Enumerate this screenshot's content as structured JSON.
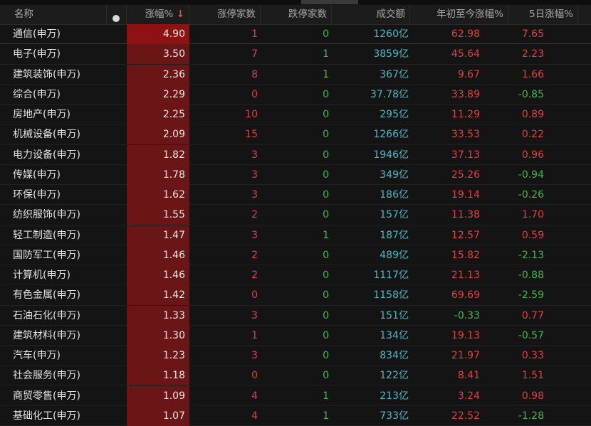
{
  "colors": {
    "up": "#e2403c",
    "down": "#3fb84a",
    "amount": "#4ab9c4",
    "highlight_column": "#6b1616"
  },
  "header": {
    "name": "名称",
    "dot_icon": "status-dot",
    "change": "涨幅%",
    "sort_icon": "arrow-down",
    "limit_up": "涨停家数",
    "limit_down": "跌停家数",
    "amount": "成交额",
    "ytd": "年初至今涨幅%",
    "d5": "5日涨幅%"
  },
  "rows": [
    {
      "name": "通信(申万)",
      "chg": "4.90",
      "up": "1",
      "dn": "0",
      "amt": "1260亿",
      "ytd": "62.98",
      "d5": "7.65"
    },
    {
      "name": "电子(申万)",
      "chg": "3.50",
      "up": "7",
      "dn": "1",
      "amt": "3859亿",
      "ytd": "45.64",
      "d5": "2.23"
    },
    {
      "name": "建筑装饰(申万)",
      "chg": "2.36",
      "up": "8",
      "dn": "1",
      "amt": "367亿",
      "ytd": "9.67",
      "d5": "1.66"
    },
    {
      "name": "综合(申万)",
      "chg": "2.29",
      "up": "0",
      "dn": "0",
      "amt": "37.78亿",
      "ytd": "33.89",
      "d5": "-0.85"
    },
    {
      "name": "房地产(申万)",
      "chg": "2.25",
      "up": "10",
      "dn": "0",
      "amt": "295亿",
      "ytd": "11.29",
      "d5": "0.89"
    },
    {
      "name": "机械设备(申万)",
      "chg": "2.09",
      "up": "15",
      "dn": "0",
      "amt": "1266亿",
      "ytd": "33.53",
      "d5": "0.22"
    },
    {
      "name": "电力设备(申万)",
      "chg": "1.82",
      "up": "3",
      "dn": "0",
      "amt": "1946亿",
      "ytd": "37.13",
      "d5": "0.96"
    },
    {
      "name": "传媒(申万)",
      "chg": "1.78",
      "up": "3",
      "dn": "0",
      "amt": "349亿",
      "ytd": "25.26",
      "d5": "-0.94"
    },
    {
      "name": "环保(申万)",
      "chg": "1.62",
      "up": "3",
      "dn": "0",
      "amt": "186亿",
      "ytd": "19.14",
      "d5": "-0.26"
    },
    {
      "name": "纺织服饰(申万)",
      "chg": "1.55",
      "up": "2",
      "dn": "0",
      "amt": "157亿",
      "ytd": "11.38",
      "d5": "1.70"
    },
    {
      "name": "轻工制造(申万)",
      "chg": "1.47",
      "up": "3",
      "dn": "1",
      "amt": "187亿",
      "ytd": "12.57",
      "d5": "0.59"
    },
    {
      "name": "国防军工(申万)",
      "chg": "1.46",
      "up": "2",
      "dn": "0",
      "amt": "489亿",
      "ytd": "15.82",
      "d5": "-2.13"
    },
    {
      "name": "计算机(申万)",
      "chg": "1.46",
      "up": "2",
      "dn": "0",
      "amt": "1117亿",
      "ytd": "21.13",
      "d5": "-0.88"
    },
    {
      "name": "有色金属(申万)",
      "chg": "1.42",
      "up": "0",
      "dn": "0",
      "amt": "1158亿",
      "ytd": "69.69",
      "d5": "-2.59"
    },
    {
      "name": "石油石化(申万)",
      "chg": "1.33",
      "up": "3",
      "dn": "0",
      "amt": "151亿",
      "ytd": "-0.33",
      "d5": "0.77"
    },
    {
      "name": "建筑材料(申万)",
      "chg": "1.30",
      "up": "1",
      "dn": "0",
      "amt": "134亿",
      "ytd": "19.13",
      "d5": "-0.57"
    },
    {
      "name": "汽车(申万)",
      "chg": "1.23",
      "up": "3",
      "dn": "0",
      "amt": "834亿",
      "ytd": "21.97",
      "d5": "0.33"
    },
    {
      "name": "社会服务(申万)",
      "chg": "1.18",
      "up": "0",
      "dn": "0",
      "amt": "122亿",
      "ytd": "8.41",
      "d5": "1.51"
    },
    {
      "name": "商贸零售(申万)",
      "chg": "1.09",
      "up": "4",
      "dn": "1",
      "amt": "213亿",
      "ytd": "3.24",
      "d5": "0.98"
    },
    {
      "name": "基础化工(申万)",
      "chg": "1.07",
      "up": "4",
      "dn": "1",
      "amt": "733亿",
      "ytd": "22.52",
      "d5": "-1.28"
    }
  ]
}
